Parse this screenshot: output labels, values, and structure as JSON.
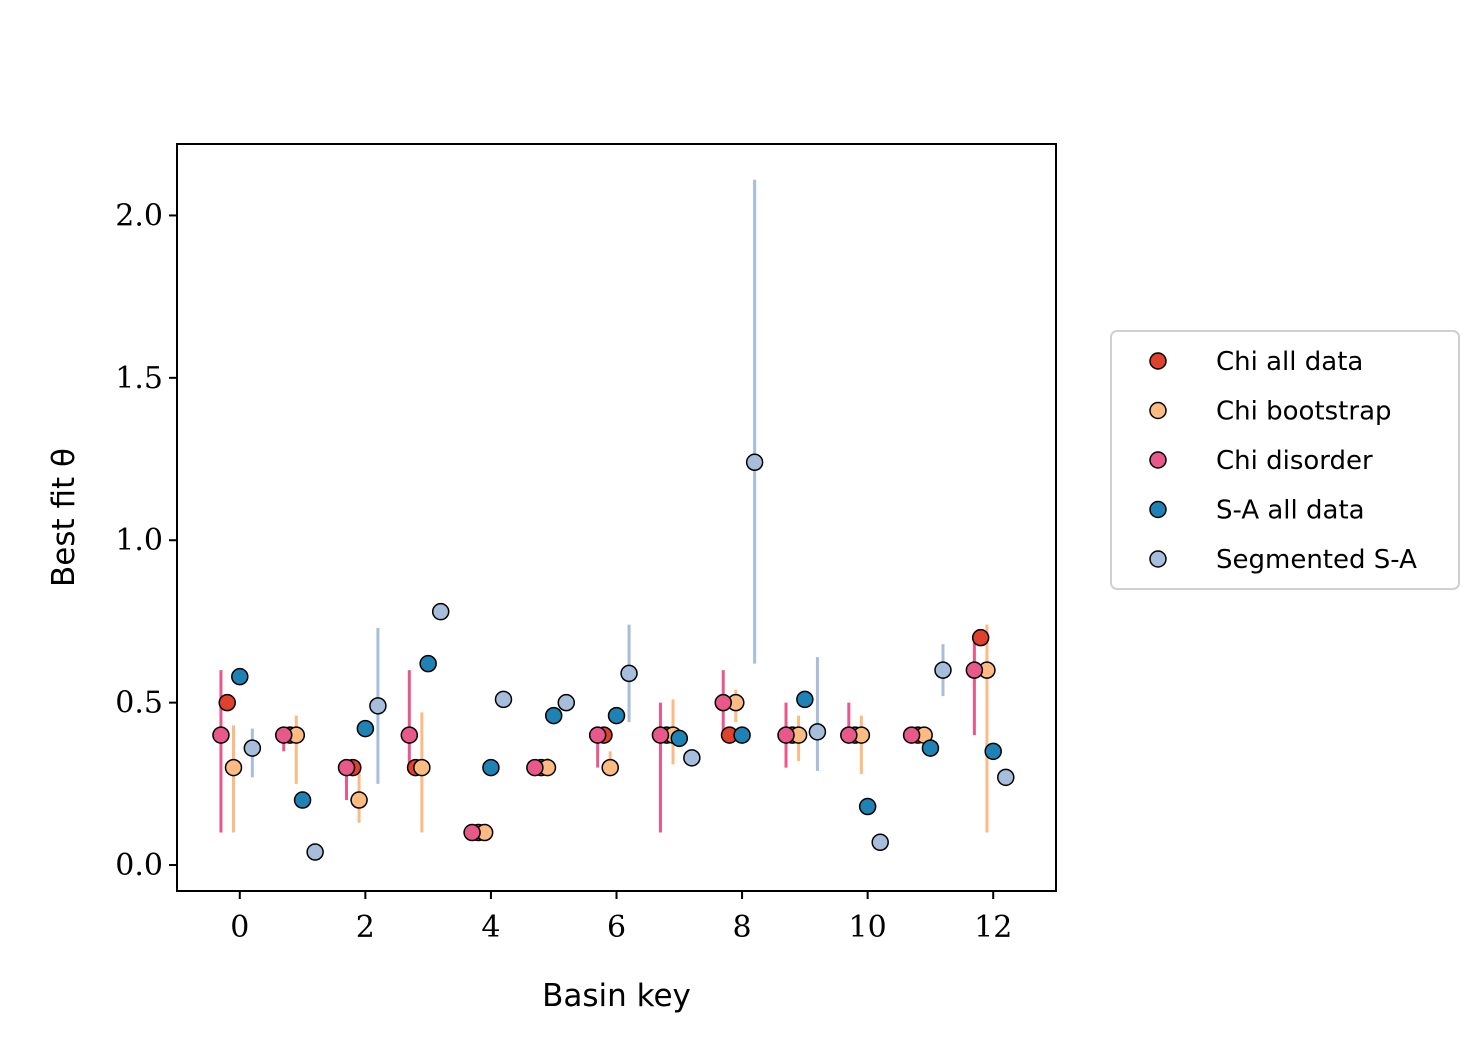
{
  "chart_data": {
    "type": "scatter",
    "title": "",
    "xlabel": "Basin key",
    "ylabel": "Best fit θ",
    "xlim": [
      -1,
      13
    ],
    "ylim": [
      -0.08,
      2.22
    ],
    "xticks": [
      0,
      2,
      4,
      6,
      8,
      10,
      12
    ],
    "yticks": [
      0.0,
      0.5,
      1.0,
      1.5,
      2.0
    ],
    "xtick_labels": [
      "0",
      "2",
      "4",
      "6",
      "8",
      "10",
      "12"
    ],
    "ytick_labels": [
      "0.0",
      "0.5",
      "1.0",
      "1.5",
      "2.0"
    ],
    "grid": false,
    "legend_position": "right, outside plot",
    "marker_edge_color": "#000000",
    "series": [
      {
        "name": "Chi all data",
        "color": "#e0412c",
        "x": [
          -0.2,
          0.8,
          1.8,
          2.8,
          3.8,
          4.8,
          5.8,
          6.8,
          7.8,
          8.8,
          9.8,
          10.8,
          11.8
        ],
        "y": [
          0.5,
          0.4,
          0.3,
          0.3,
          0.1,
          0.3,
          0.4,
          0.4,
          0.4,
          0.4,
          0.4,
          0.4,
          0.7
        ],
        "err_low": [
          null,
          null,
          null,
          null,
          null,
          null,
          null,
          null,
          null,
          null,
          null,
          null,
          null
        ],
        "err_high": [
          null,
          null,
          null,
          null,
          null,
          null,
          null,
          null,
          null,
          null,
          null,
          null,
          null
        ]
      },
      {
        "name": "Chi bootstrap",
        "color": "#fdbb84",
        "x": [
          -0.1,
          0.9,
          1.9,
          2.9,
          3.9,
          4.9,
          5.9,
          6.9,
          7.9,
          8.9,
          9.9,
          10.9,
          11.9
        ],
        "y": [
          0.3,
          0.4,
          0.2,
          0.3,
          0.1,
          0.3,
          0.3,
          0.4,
          0.5,
          0.4,
          0.4,
          0.4,
          0.6
        ],
        "err_low": [
          0.1,
          0.25,
          0.13,
          0.1,
          null,
          0.28,
          0.28,
          0.31,
          0.44,
          0.32,
          0.28,
          null,
          0.1
        ],
        "err_high": [
          0.43,
          0.46,
          0.3,
          0.47,
          null,
          0.33,
          0.35,
          0.51,
          0.54,
          0.46,
          0.46,
          null,
          0.74
        ]
      },
      {
        "name": "Chi disorder",
        "color": "#e8588a",
        "x": [
          -0.3,
          0.7,
          1.7,
          2.7,
          3.7,
          4.7,
          5.7,
          6.7,
          7.7,
          8.7,
          9.7,
          10.7,
          11.7
        ],
        "y": [
          0.4,
          0.4,
          0.3,
          0.4,
          0.1,
          0.3,
          0.4,
          0.4,
          0.5,
          0.4,
          0.4,
          0.4,
          0.6
        ],
        "err_low": [
          0.1,
          0.35,
          0.2,
          0.3,
          null,
          null,
          0.3,
          0.1,
          0.4,
          0.3,
          0.4,
          null,
          0.4
        ],
        "err_high": [
          0.6,
          0.4,
          0.3,
          0.6,
          null,
          null,
          0.4,
          0.5,
          0.6,
          0.5,
          0.5,
          null,
          0.7
        ]
      },
      {
        "name": "S-A all data",
        "color": "#1f82b4",
        "x": [
          0,
          1,
          2,
          3,
          4,
          5,
          6,
          7,
          8,
          9,
          10,
          11,
          12
        ],
        "y": [
          0.58,
          0.2,
          0.42,
          0.62,
          0.3,
          0.46,
          0.46,
          0.39,
          0.4,
          0.51,
          0.18,
          0.36,
          0.35
        ],
        "err_low": [
          null,
          null,
          null,
          null,
          null,
          null,
          null,
          null,
          null,
          null,
          null,
          null,
          null
        ],
        "err_high": [
          null,
          null,
          null,
          null,
          null,
          null,
          null,
          null,
          null,
          null,
          null,
          null,
          null
        ]
      },
      {
        "name": "Segmented S-A",
        "color": "#a6bddb",
        "x": [
          0.2,
          1.2,
          2.2,
          3.2,
          4.2,
          5.2,
          6.2,
          7.2,
          8.2,
          9.2,
          10.2,
          11.2,
          12.2
        ],
        "y": [
          0.36,
          0.04,
          0.49,
          0.78,
          0.51,
          0.5,
          0.59,
          0.33,
          1.24,
          0.41,
          0.07,
          0.6,
          0.27
        ],
        "err_low": [
          0.27,
          null,
          0.25,
          null,
          null,
          null,
          0.44,
          null,
          0.62,
          0.29,
          null,
          0.52,
          null
        ],
        "err_high": [
          0.42,
          null,
          0.73,
          null,
          null,
          null,
          0.74,
          null,
          2.11,
          0.64,
          null,
          0.68,
          null
        ]
      }
    ]
  }
}
